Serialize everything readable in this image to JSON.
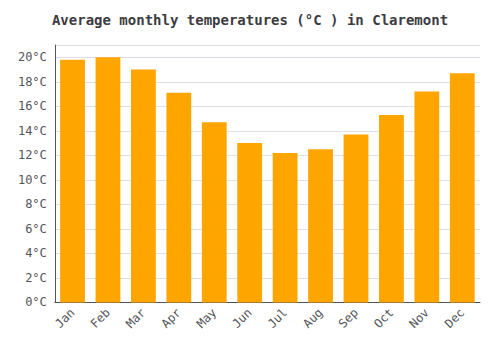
{
  "chart_data": {
    "type": "bar",
    "title": "Average monthly temperatures (°C ) in Claremont",
    "categories": [
      "Jan",
      "Feb",
      "Mar",
      "Apr",
      "May",
      "Jun",
      "Jul",
      "Aug",
      "Sep",
      "Oct",
      "Nov",
      "Dec"
    ],
    "values": [
      19.8,
      20.0,
      19.0,
      17.1,
      14.7,
      13.0,
      12.2,
      12.5,
      13.7,
      15.3,
      17.2,
      18.7
    ],
    "color": "#FFA500",
    "ylim": [
      0,
      21
    ],
    "yticks": [
      {
        "value": 0,
        "label": "0°C"
      },
      {
        "value": 2,
        "label": "2°C"
      },
      {
        "value": 4,
        "label": "4°C"
      },
      {
        "value": 6,
        "label": "6°C"
      },
      {
        "value": 8,
        "label": "8°C"
      },
      {
        "value": 10,
        "label": "10°C"
      },
      {
        "value": 12,
        "label": "12°C"
      },
      {
        "value": 14,
        "label": "14°C"
      },
      {
        "value": 16,
        "label": "16°C"
      },
      {
        "value": 18,
        "label": "18°C"
      },
      {
        "value": 20,
        "label": "20°C"
      }
    ],
    "grid": true
  }
}
